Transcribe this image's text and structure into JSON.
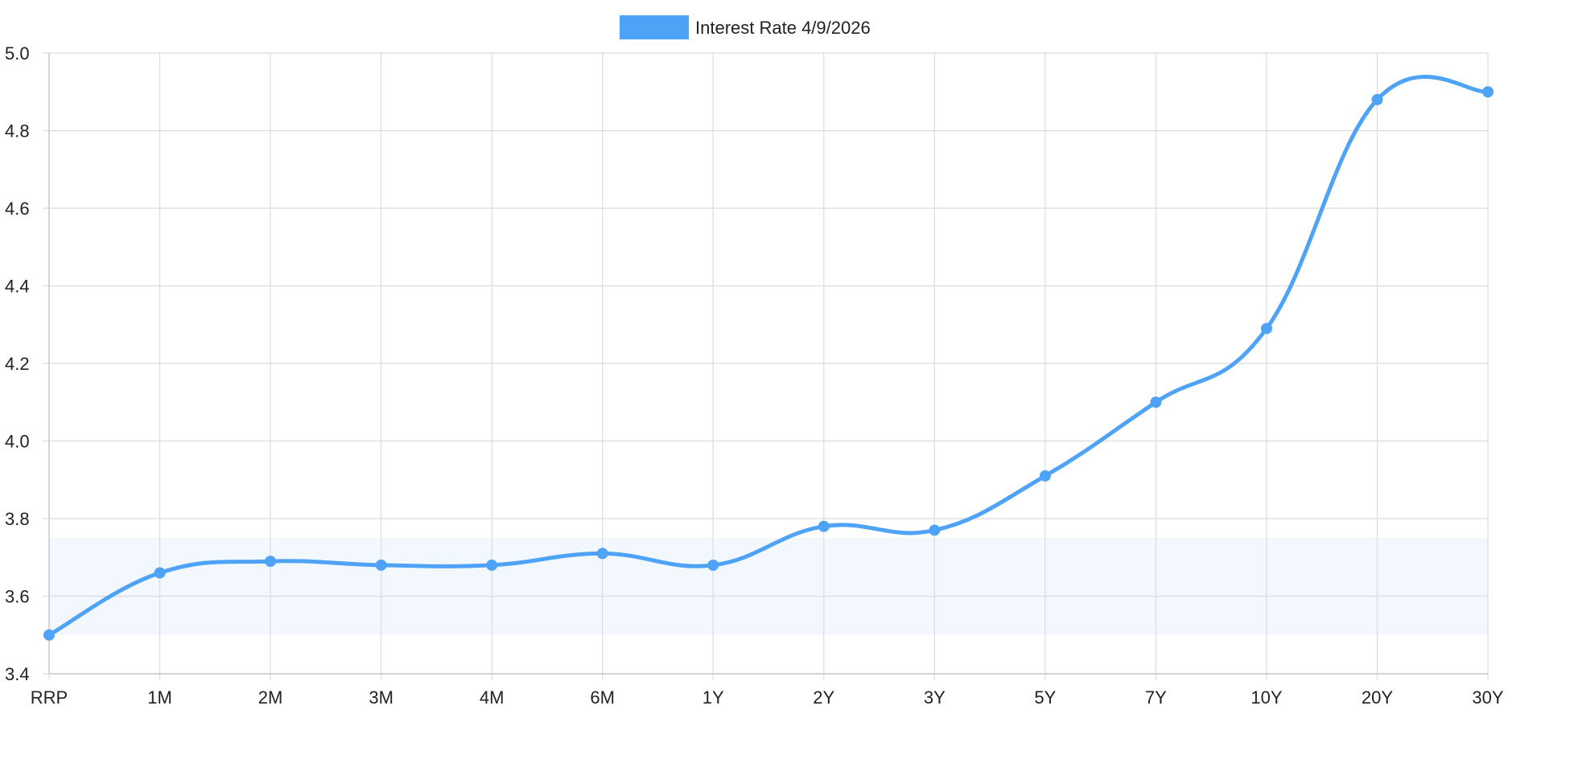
{
  "chart_data": {
    "type": "line",
    "categories": [
      "RRP",
      "1M",
      "2M",
      "3M",
      "4M",
      "6M",
      "1Y",
      "2Y",
      "3Y",
      "5Y",
      "7Y",
      "10Y",
      "20Y",
      "30Y"
    ],
    "series": [
      {
        "name": "Interest Rate 4/9/2026",
        "values": [
          3.5,
          3.66,
          3.69,
          3.68,
          3.68,
          3.71,
          3.68,
          3.78,
          3.77,
          3.91,
          4.1,
          4.29,
          4.88,
          4.9
        ],
        "color": "#4fa3f7"
      }
    ],
    "ylim": [
      3.4,
      5.0
    ],
    "y_ticks": [
      "3.4",
      "3.6",
      "3.8",
      "4.0",
      "4.2",
      "4.4",
      "4.6",
      "4.8",
      "5.0"
    ],
    "shaded_band": {
      "from": 3.5,
      "to": 3.75,
      "color": "#f3f8fe"
    },
    "grid": true,
    "legend_position": "top-center",
    "curve": "smooth"
  }
}
